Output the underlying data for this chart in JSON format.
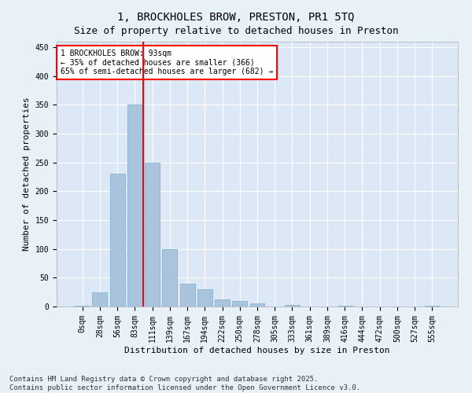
{
  "title1": "1, BROCKHOLES BROW, PRESTON, PR1 5TQ",
  "title2": "Size of property relative to detached houses in Preston",
  "xlabel": "Distribution of detached houses by size in Preston",
  "ylabel": "Number of detached properties",
  "categories": [
    "0sqm",
    "28sqm",
    "56sqm",
    "83sqm",
    "111sqm",
    "139sqm",
    "167sqm",
    "194sqm",
    "222sqm",
    "250sqm",
    "278sqm",
    "305sqm",
    "333sqm",
    "361sqm",
    "389sqm",
    "416sqm",
    "444sqm",
    "472sqm",
    "500sqm",
    "527sqm",
    "555sqm"
  ],
  "values": [
    2,
    25,
    230,
    350,
    250,
    100,
    40,
    30,
    12,
    10,
    5,
    0,
    3,
    0,
    0,
    1,
    0,
    0,
    0,
    0,
    1
  ],
  "bar_color": "#aac4dd",
  "bar_edge_color": "#7aaac8",
  "vline_x": 3.5,
  "vline_color": "red",
  "annotation_text": "1 BROCKHOLES BROW: 93sqm\n← 35% of detached houses are smaller (366)\n65% of semi-detached houses are larger (682) →",
  "annotation_box_color": "white",
  "annotation_box_edge_color": "red",
  "ylim": [
    0,
    460
  ],
  "yticks": [
    0,
    50,
    100,
    150,
    200,
    250,
    300,
    350,
    400,
    450
  ],
  "footnote": "Contains HM Land Registry data © Crown copyright and database right 2025.\nContains public sector information licensed under the Open Government Licence v3.0.",
  "background_color": "#e8f0f8",
  "plot_background_color": "#dce8f5",
  "grid_color": "white",
  "title_fontsize": 10,
  "subtitle_fontsize": 9,
  "axis_label_fontsize": 8,
  "tick_fontsize": 7,
  "footnote_fontsize": 6.5
}
